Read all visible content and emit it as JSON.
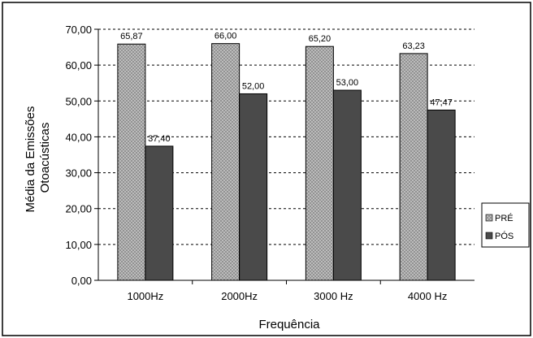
{
  "chart_data": {
    "type": "bar",
    "title": "",
    "xlabel": "Frequência",
    "ylabel_lines": [
      "Média da Emissões",
      "Otoacústicas"
    ],
    "categories": [
      "1000Hz",
      "2000Hz",
      "3000 Hz",
      "4000 Hz"
    ],
    "series": [
      {
        "name": "PRÉ",
        "values": [
          65.87,
          66.0,
          65.2,
          63.23
        ],
        "labels": [
          "65,87",
          "66,00",
          "65,20",
          "63,23"
        ],
        "pattern": "crosshatch-light"
      },
      {
        "name": "PÓS",
        "values": [
          37.4,
          52.0,
          53.0,
          47.47
        ],
        "labels": [
          "37,40",
          "52,00",
          "53,00",
          "47,47"
        ],
        "pattern": "dark-gray"
      }
    ],
    "ylim": [
      0,
      70
    ],
    "yticks": [
      0,
      10,
      20,
      30,
      40,
      50,
      60,
      70
    ],
    "ytick_labels": [
      "0,00",
      "10,00",
      "20,00",
      "30,00",
      "40,00",
      "50,00",
      "60,00",
      "70,00"
    ],
    "grid": "dashed horizontal",
    "legend_position": "right"
  }
}
